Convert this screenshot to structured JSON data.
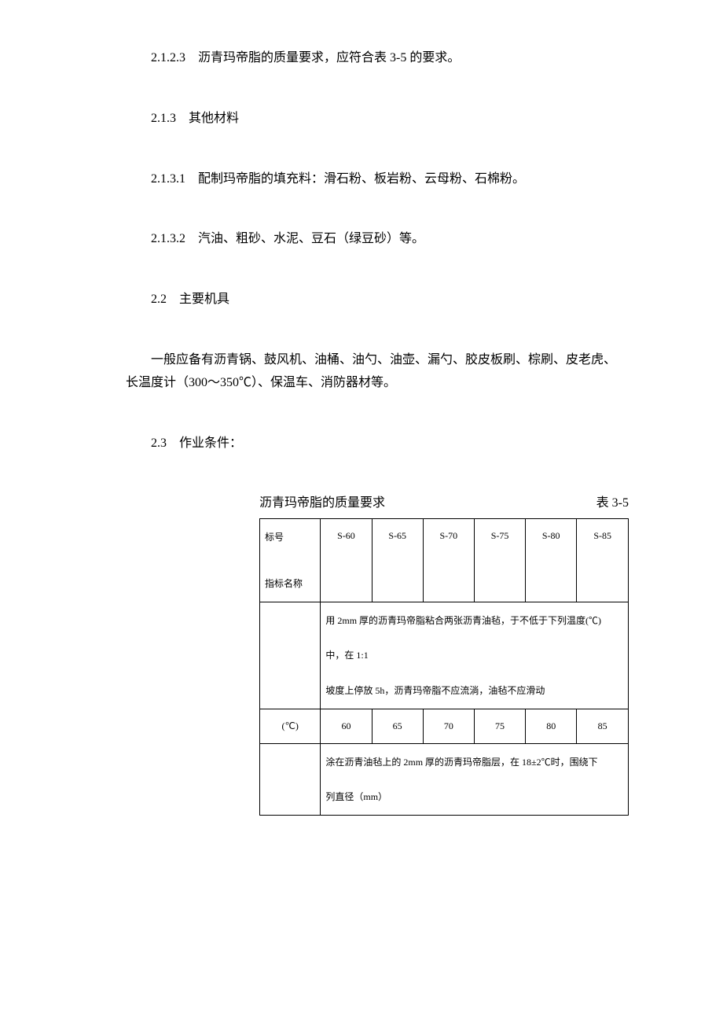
{
  "paragraphs": {
    "p1": "2.1.2.3　沥青玛帝脂的质量要求，应符合表 3-5 的要求。",
    "p2": "2.1.3　其他材料",
    "p3": "2.1.3.1　配制玛帝脂的填充料：滑石粉、板岩粉、云母粉、石棉粉。",
    "p4": "2.1.3.2　汽油、粗砂、水泥、豆石（绿豆砂）等。",
    "p5": "2.2　主要机具",
    "p6a": "一般应备有沥青锅、鼓风机、油桶、油勺、油壶、漏勺、胶皮板刷、棕刷、皮老虎、",
    "p6b": "长温度计（300～350℃）、保温车、消防器材等。",
    "p7": "2.3　作业条件："
  },
  "table": {
    "title": "沥青玛帝脂的质量要求",
    "label": "表 3-5",
    "header_l1": "标号",
    "header_l2": "指标名称",
    "cols": [
      "S-60",
      "S-65",
      "S-70",
      "S-75",
      "S-80",
      "S-85"
    ],
    "r2a": "用 2mm 厚的沥青玛帝脂粘合两张沥青油毡，于不低于下列温度(℃)",
    "r2b": "中，在 1:1",
    "r2c": "坡度上停放 5h，沥青玛帝脂不应流淌，油毡不应滑动",
    "r3_label": "(℃)",
    "r3_vals": [
      "60",
      "65",
      "70",
      "75",
      "80",
      "85"
    ],
    "r4a": "涂在沥青油毡上的 2mm 厚的沥青玛帝脂层，在 18±2℃时，围绕下",
    "r4b": "列直径（mm）"
  },
  "style": {
    "body_font_size": 16,
    "table_font_size": 12,
    "text_color": "#000000",
    "bg_color": "#ffffff",
    "border_color": "#000000"
  }
}
